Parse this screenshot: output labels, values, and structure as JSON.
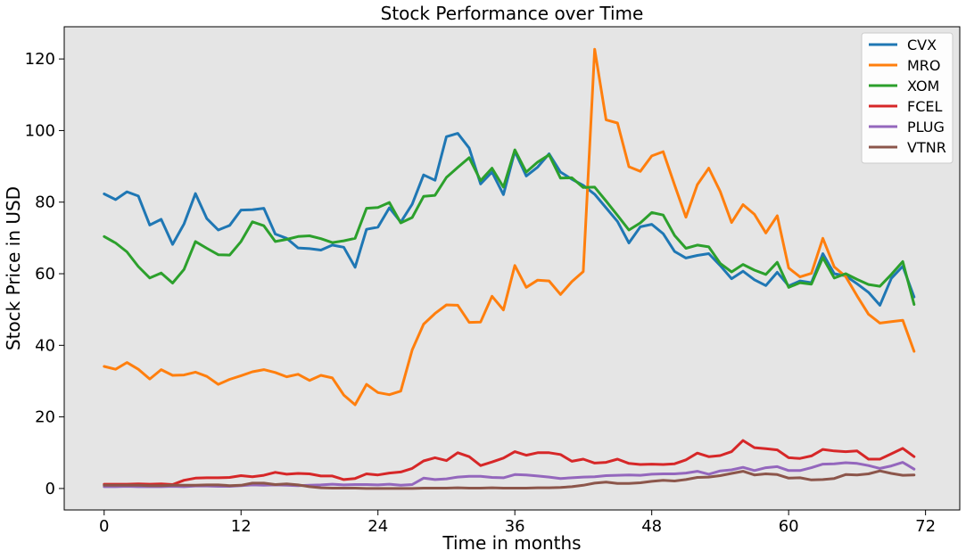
{
  "chart_data": {
    "type": "line",
    "title": "Stock Performance over Time",
    "xlabel": "Time in months",
    "ylabel": "Stock Price in USD",
    "xlim": [
      -3.5,
      75
    ],
    "ylim": [
      -6,
      129
    ],
    "xticks": [
      0,
      12,
      24,
      36,
      48,
      60,
      72
    ],
    "yticks": [
      0,
      20,
      40,
      60,
      80,
      100,
      120
    ],
    "grid": false,
    "background": "#e5e5e5",
    "legend_position": "top-right",
    "x": [
      0,
      1,
      2,
      3,
      4,
      5,
      6,
      7,
      8,
      9,
      10,
      11,
      12,
      13,
      14,
      15,
      16,
      17,
      18,
      19,
      20,
      21,
      22,
      23,
      24,
      25,
      26,
      27,
      28,
      29,
      30,
      31,
      32,
      33,
      34,
      35,
      36,
      37,
      38,
      39,
      40,
      41,
      42,
      43,
      44,
      45,
      46,
      47,
      48,
      49,
      50,
      51,
      52,
      53,
      54,
      55,
      56,
      57,
      58,
      59,
      60,
      61,
      62,
      63,
      64,
      65,
      66,
      67,
      68,
      69,
      70,
      71
    ],
    "series": [
      {
        "name": "CVX",
        "color": "#1f77b4",
        "values": [
          82.3,
          80.7,
          82.9,
          81.7,
          73.6,
          75.2,
          68.2,
          73.9,
          82.4,
          75.4,
          72.2,
          73.5,
          77.8,
          77.9,
          78.3,
          71.1,
          69.9,
          67.2,
          67.0,
          66.6,
          68.0,
          67.4,
          61.8,
          72.4,
          73.0,
          78.4,
          74.4,
          79.4,
          87.6,
          86.1,
          98.3,
          99.2,
          95.1,
          85.1,
          88.4,
          82.1,
          94.2,
          87.3,
          89.8,
          93.5,
          88.4,
          86.4,
          84.7,
          82.2,
          78.4,
          74.6,
          68.6,
          73.1,
          73.8,
          71.2,
          66.2,
          64.4,
          65.1,
          65.6,
          62.3,
          58.6,
          60.7,
          58.3,
          56.7,
          60.4,
          56.6,
          58.0,
          57.5,
          65.6,
          60.0,
          59.4,
          57.2,
          54.8,
          51.2,
          58.7,
          62.1,
          53.5
        ]
      },
      {
        "name": "MRO",
        "color": "#ff7f0e",
        "values": [
          34.1,
          33.3,
          35.2,
          33.3,
          30.6,
          33.2,
          31.6,
          31.7,
          32.5,
          31.3,
          29.1,
          30.5,
          31.5,
          32.6,
          33.2,
          32.4,
          31.2,
          31.9,
          30.2,
          31.6,
          30.9,
          26.1,
          23.4,
          29.1,
          26.8,
          26.2,
          27.2,
          38.7,
          45.9,
          48.9,
          51.3,
          51.2,
          46.4,
          46.5,
          53.7,
          49.9,
          62.3,
          56.2,
          58.2,
          58.0,
          54.2,
          57.8,
          60.6,
          122.7,
          103.0,
          102.1,
          89.9,
          88.6,
          92.9,
          94.1,
          84.8,
          75.8,
          84.9,
          89.5,
          83.0,
          74.3,
          79.3,
          76.6,
          71.4,
          76.2,
          61.6,
          59.1,
          60.1,
          69.9,
          61.9,
          59.2,
          53.8,
          48.7,
          46.2,
          46.6,
          47.0,
          38.3
        ]
      },
      {
        "name": "XOM",
        "color": "#2ca02c",
        "values": [
          70.4,
          68.6,
          66.1,
          62.0,
          58.8,
          60.2,
          57.4,
          61.2,
          69.0,
          67.1,
          65.3,
          65.2,
          69.0,
          74.5,
          73.4,
          69.0,
          69.6,
          70.4,
          70.6,
          69.8,
          68.7,
          69.2,
          69.9,
          78.3,
          78.5,
          79.9,
          74.2,
          75.7,
          81.6,
          81.9,
          86.9,
          89.7,
          92.4,
          86.0,
          89.5,
          84.2,
          94.6,
          88.4,
          91.2,
          93.2,
          86.7,
          86.8,
          84.1,
          84.2,
          80.3,
          76.3,
          72.2,
          74.2,
          77.1,
          76.4,
          70.7,
          67.1,
          68.0,
          67.5,
          62.9,
          60.5,
          62.6,
          61.0,
          59.8,
          63.2,
          56.2,
          57.5,
          57.1,
          64.5,
          58.8,
          60.0,
          58.4,
          57.0,
          56.5,
          59.8,
          63.4,
          51.4
        ]
      },
      {
        "name": "FCEL",
        "color": "#d62728",
        "values": [
          1.2,
          1.2,
          1.2,
          1.3,
          1.2,
          1.3,
          1.1,
          2.3,
          2.9,
          3.0,
          3.0,
          3.1,
          3.6,
          3.3,
          3.7,
          4.5,
          4.0,
          4.2,
          4.1,
          3.5,
          3.5,
          2.5,
          2.8,
          4.1,
          3.8,
          4.3,
          4.6,
          5.6,
          7.7,
          8.6,
          7.8,
          10.0,
          8.9,
          6.4,
          7.4,
          8.5,
          10.3,
          9.3,
          10.0,
          10.0,
          9.5,
          7.6,
          8.2,
          7.1,
          7.3,
          8.2,
          7.0,
          6.7,
          6.8,
          6.7,
          6.9,
          8.0,
          9.9,
          8.9,
          9.2,
          10.3,
          13.4,
          11.4,
          11.1,
          10.8,
          8.6,
          8.4,
          9.1,
          10.9,
          10.5,
          10.3,
          10.5,
          8.2,
          8.2,
          9.7,
          11.2,
          8.9
        ]
      },
      {
        "name": "PLUG",
        "color": "#9467bd",
        "values": [
          0.5,
          0.5,
          0.6,
          0.5,
          0.5,
          0.5,
          0.6,
          0.5,
          0.7,
          0.7,
          0.6,
          0.6,
          0.8,
          1.0,
          0.9,
          1.0,
          0.9,
          0.8,
          0.9,
          1.0,
          1.2,
          1.0,
          1.1,
          1.1,
          1.0,
          1.2,
          0.9,
          1.1,
          2.9,
          2.5,
          2.7,
          3.2,
          3.4,
          3.4,
          3.1,
          3.0,
          3.9,
          3.8,
          3.5,
          3.2,
          2.8,
          3.0,
          3.2,
          3.3,
          3.6,
          3.7,
          3.8,
          3.7,
          4.0,
          4.1,
          4.1,
          4.3,
          4.8,
          4.0,
          4.9,
          5.2,
          5.9,
          5.0,
          5.8,
          6.1,
          5.0,
          5.0,
          5.8,
          6.8,
          6.9,
          7.2,
          7.0,
          6.4,
          5.6,
          6.3,
          7.3,
          5.4
        ]
      },
      {
        "name": "VTNR",
        "color": "#8c564b",
        "values": [
          0.9,
          0.9,
          0.9,
          0.9,
          0.8,
          0.8,
          0.9,
          0.9,
          0.9,
          1.0,
          1.0,
          0.8,
          0.9,
          1.5,
          1.5,
          1.1,
          1.3,
          1.0,
          0.5,
          0.2,
          0.1,
          0.1,
          0.1,
          0.0,
          0.0,
          0.0,
          0.0,
          0.0,
          0.1,
          0.1,
          0.1,
          0.2,
          0.1,
          0.1,
          0.2,
          0.1,
          0.1,
          0.1,
          0.2,
          0.2,
          0.3,
          0.5,
          0.9,
          1.5,
          1.8,
          1.4,
          1.4,
          1.6,
          2.0,
          2.3,
          2.1,
          2.5,
          3.1,
          3.2,
          3.6,
          4.2,
          4.8,
          3.8,
          4.1,
          3.9,
          2.9,
          3.0,
          2.4,
          2.5,
          2.8,
          3.9,
          3.8,
          4.1,
          4.9,
          4.2,
          3.7,
          3.8
        ]
      }
    ]
  }
}
